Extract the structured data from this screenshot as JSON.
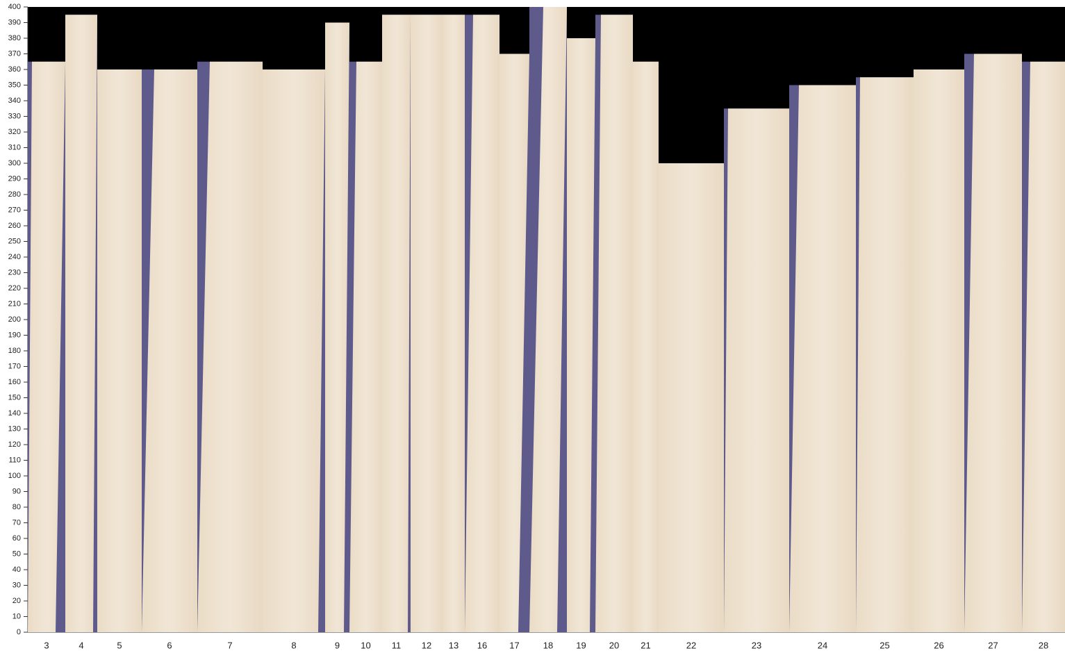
{
  "chart_data": {
    "type": "bar",
    "categories": [
      "3",
      "4",
      "5",
      "6",
      "7",
      "8",
      "9",
      "10",
      "11",
      "12",
      "13",
      "16",
      "17",
      "18",
      "19",
      "20",
      "21",
      "22",
      "23",
      "24",
      "25",
      "26",
      "27",
      "28"
    ],
    "values": [
      365,
      395,
      360,
      360,
      365,
      360,
      390,
      365,
      395,
      395,
      395,
      395,
      370,
      400,
      380,
      395,
      365,
      300,
      335,
      350,
      355,
      360,
      370,
      365
    ],
    "color": "#5f5a8c",
    "ylim": [
      0,
      400
    ],
    "yticks": [
      0,
      10,
      20,
      30,
      40,
      50,
      60,
      70,
      80,
      90,
      100,
      110,
      120,
      130,
      140,
      150,
      160,
      170,
      180,
      190,
      200,
      210,
      220,
      230,
      240,
      250,
      260,
      270,
      280,
      290,
      300,
      310,
      320,
      330,
      340,
      350,
      360,
      370,
      380,
      390,
      400
    ]
  }
}
